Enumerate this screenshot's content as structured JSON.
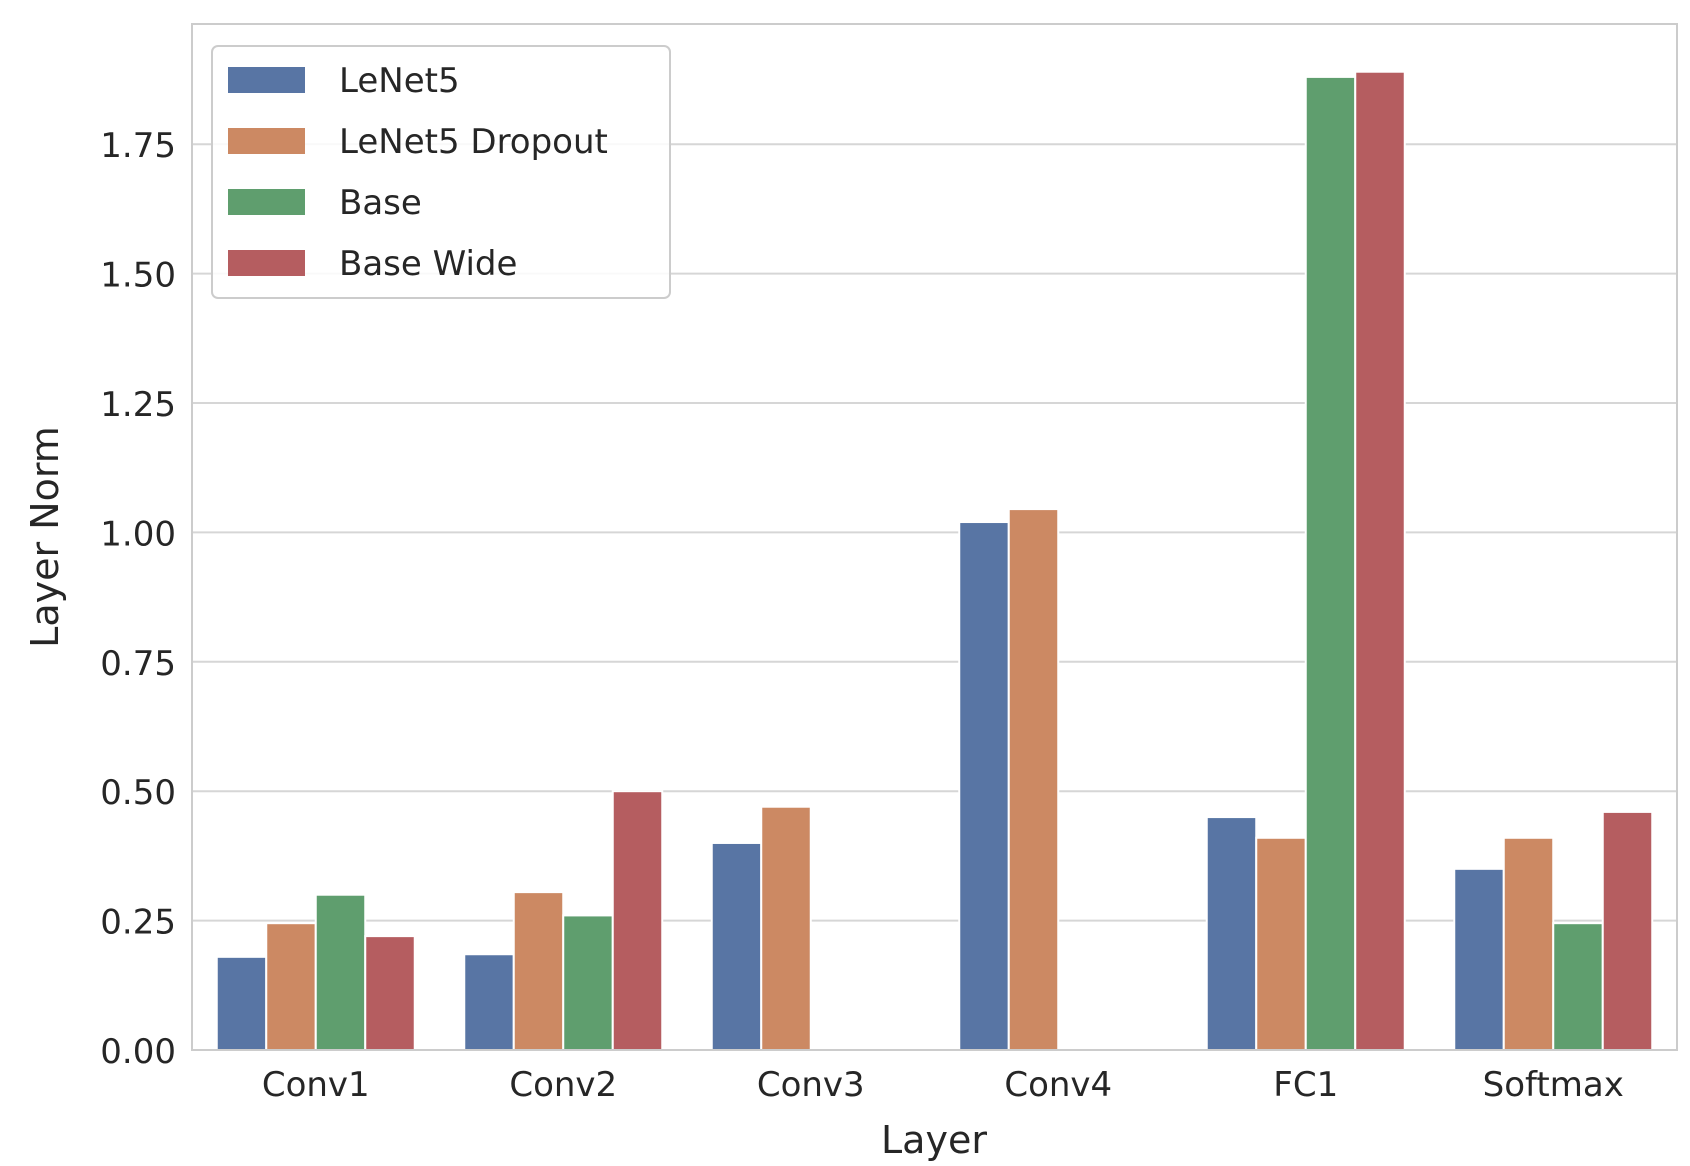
{
  "chart_data": {
    "type": "bar",
    "title": "",
    "xlabel": "Layer",
    "ylabel": "Layer Norm",
    "categories": [
      "Conv1",
      "Conv2",
      "Conv3",
      "Conv4",
      "FC1",
      "Softmax"
    ],
    "series": [
      {
        "name": "LeNet5",
        "color": "#5875a4",
        "values": [
          0.18,
          0.185,
          0.4,
          1.02,
          0.45,
          0.35
        ]
      },
      {
        "name": "LeNet5 Dropout",
        "color": "#cc8963",
        "values": [
          0.245,
          0.305,
          0.47,
          1.045,
          0.41,
          0.41
        ]
      },
      {
        "name": "Base",
        "color": "#5f9e6e",
        "values": [
          0.3,
          0.26,
          null,
          null,
          1.88,
          0.245
        ]
      },
      {
        "name": "Base Wide",
        "color": "#b55d60",
        "values": [
          0.22,
          0.5,
          null,
          null,
          1.89,
          0.46
        ]
      }
    ],
    "ylim": [
      0,
      1.9822
    ],
    "yticks": [
      0.0,
      0.25,
      0.5,
      0.75,
      1.0,
      1.25,
      1.5,
      1.75
    ],
    "ytick_labels": [
      "0.00",
      "0.25",
      "0.50",
      "0.75",
      "1.00",
      "1.25",
      "1.50",
      "1.75"
    ],
    "grid": true,
    "legend_position": "top-left"
  }
}
